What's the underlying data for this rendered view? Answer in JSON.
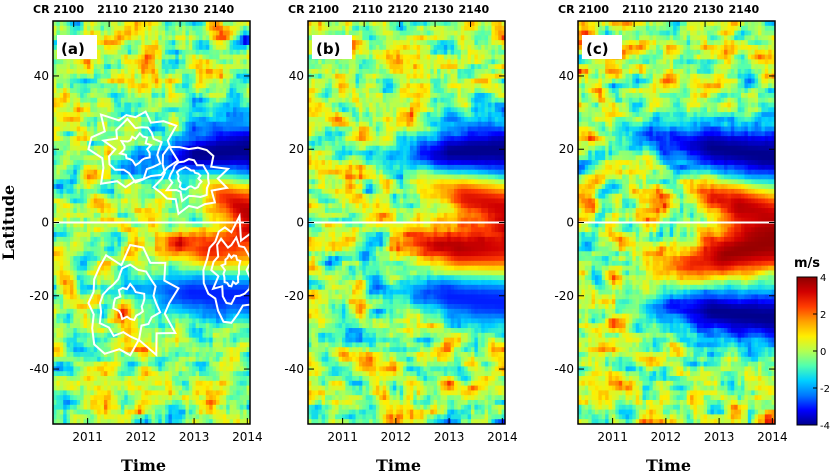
{
  "chart_data": [
    {
      "type": "heatmap",
      "panel_label": "(a)",
      "xlabel": "Time",
      "ylabel": "Latitude",
      "x_ticks": [
        "2011",
        "2012",
        "2013",
        "2014"
      ],
      "y_ticks": [
        "40",
        "20",
        "0",
        "-20",
        "-40"
      ],
      "top_ticks": [
        "CR 2100",
        "2110",
        "2120",
        "2130",
        "2140"
      ],
      "xlim": [
        2010.35,
        2014.05
      ],
      "ylim": [
        -55,
        55
      ],
      "overlay": "white contours",
      "bands": [
        {
          "from": 2012.6,
          "to": 2014.0,
          "lat_start": 20,
          "lat_end": 4,
          "value": 4
        },
        {
          "from": 2012.4,
          "to": 2014.0,
          "lat_start": -6,
          "lat_end": -12,
          "value": 4
        },
        {
          "from": 2011.6,
          "to": 2014.0,
          "lat_start": 16,
          "lat_end": 20,
          "value": -4
        },
        {
          "from": 2011.4,
          "to": 2014.0,
          "lat_start": -18,
          "lat_end": -20,
          "value": -3
        }
      ]
    },
    {
      "type": "heatmap",
      "panel_label": "(b)",
      "xlabel": "Time",
      "x_ticks": [
        "2011",
        "2012",
        "2013",
        "2014"
      ],
      "y_ticks": [
        "40",
        "20",
        "0",
        "-20",
        "-40"
      ],
      "top_ticks": [
        "CR 2100",
        "2110",
        "2120",
        "2130",
        "2140"
      ],
      "xlim": [
        2010.35,
        2014.05
      ],
      "ylim": [
        -55,
        55
      ],
      "bands": [
        {
          "from": 2012.3,
          "to": 2014.0,
          "lat_start": 14,
          "lat_end": 6,
          "value": 4
        },
        {
          "from": 2012.0,
          "to": 2014.0,
          "lat_start": -5,
          "lat_end": -10,
          "value": 4
        },
        {
          "from": 2011.6,
          "to": 2014.0,
          "lat_start": 18,
          "lat_end": 20,
          "value": -4
        },
        {
          "from": 2011.6,
          "to": 2014.0,
          "lat_start": -18,
          "lat_end": -22,
          "value": -3
        }
      ]
    },
    {
      "type": "heatmap",
      "panel_label": "(c)",
      "xlabel": "Time",
      "x_ticks": [
        "2011",
        "2012",
        "2013",
        "2014"
      ],
      "y_ticks": [
        "40",
        "20",
        "0",
        "-20",
        "-40"
      ],
      "top_ticks": [
        "CR 2100",
        "2110",
        "2120",
        "2130",
        "2140"
      ],
      "xlim": [
        2010.35,
        2014.05
      ],
      "ylim": [
        -55,
        55
      ],
      "bands": [
        {
          "from": 2012.5,
          "to": 2014.0,
          "lat_start": 8,
          "lat_end": 4,
          "value": 4
        },
        {
          "from": 2011.8,
          "to": 2014.0,
          "lat_start": -14,
          "lat_end": -6,
          "value": 4
        },
        {
          "from": 2011.2,
          "to": 2014.0,
          "lat_start": 24,
          "lat_end": 18,
          "value": -4
        },
        {
          "from": 2011.2,
          "to": 2014.0,
          "lat_start": -22,
          "lat_end": -26,
          "value": -4
        }
      ]
    }
  ],
  "colorbar": {
    "title": "m/s",
    "range": [
      -4,
      4
    ],
    "ticks": [
      "4",
      "2",
      "0",
      "-2",
      "-4"
    ],
    "colors": [
      "#00008c",
      "#0000ff",
      "#0077ff",
      "#00d0ff",
      "#50ffb0",
      "#b4ff50",
      "#ffee00",
      "#ffa000",
      "#ff3c00",
      "#d10000",
      "#8c0000"
    ]
  }
}
